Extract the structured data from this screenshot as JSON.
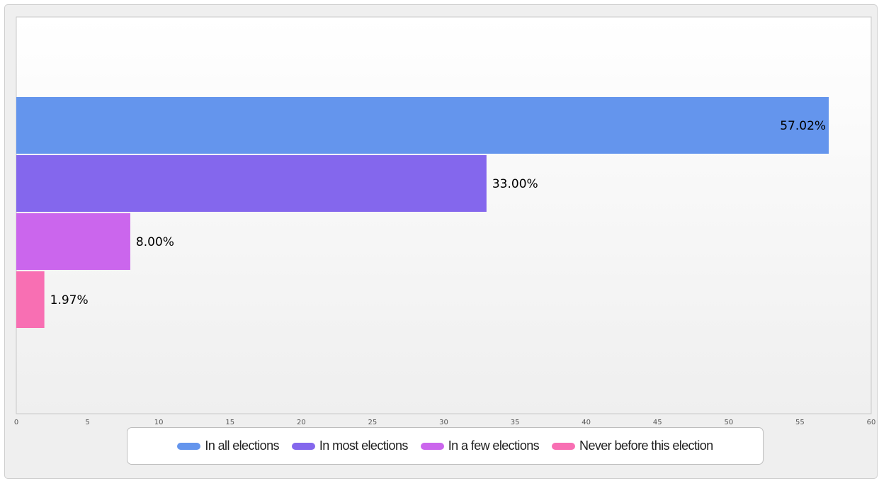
{
  "chart_data": {
    "type": "bar",
    "orientation": "horizontal",
    "series": [
      {
        "name": "In all elections",
        "value": 57.02,
        "label": "57.02%",
        "color": "#6495ED"
      },
      {
        "name": "In most elections",
        "value": 33.0,
        "label": "33.00%",
        "color": "#8467ED"
      },
      {
        "name": "In a few elections",
        "value": 8.0,
        "label": "8.00%",
        "color": "#CB66ED"
      },
      {
        "name": "Never before this election",
        "value": 1.97,
        "label": "1.97%",
        "color": "#F86FB3"
      }
    ],
    "xlim": [
      0,
      60
    ],
    "xticks": [
      "0",
      "5",
      "10",
      "15",
      "20",
      "25",
      "30",
      "35",
      "40",
      "45",
      "50",
      "55",
      "60"
    ],
    "grid": false,
    "legend_position": "bottom"
  }
}
